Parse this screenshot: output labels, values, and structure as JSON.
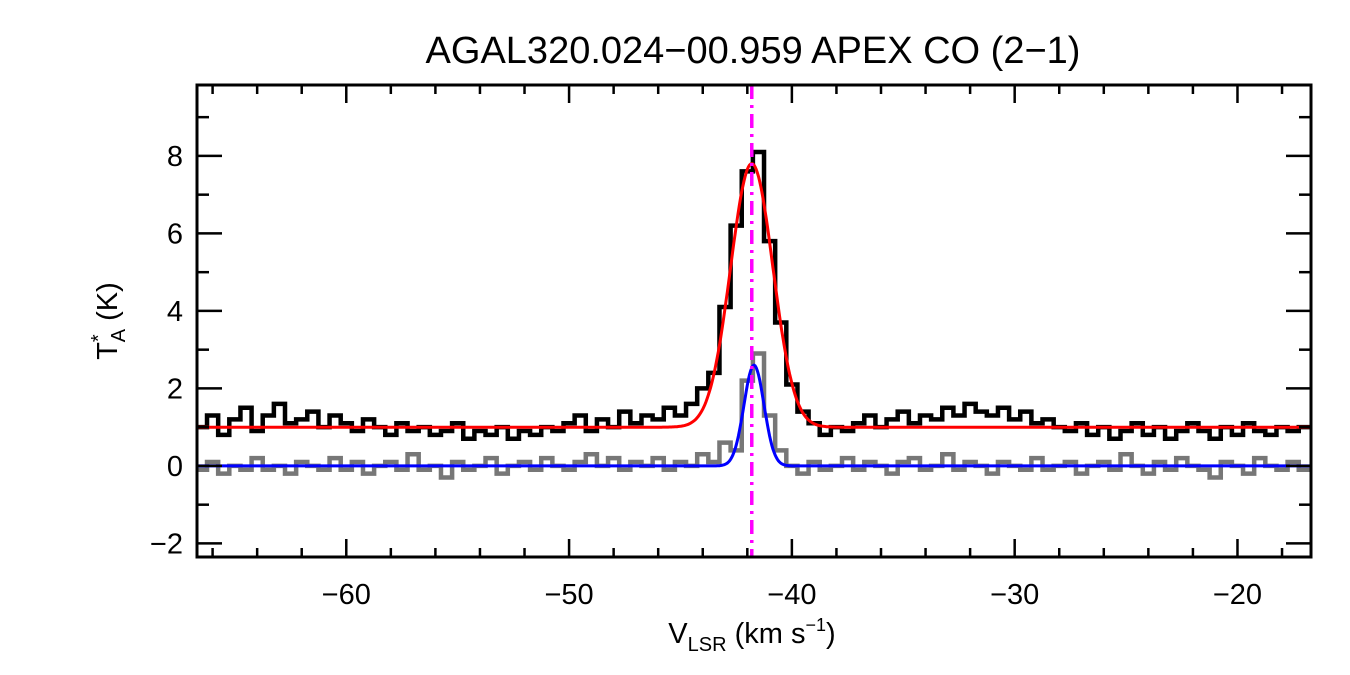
{
  "chart_data": {
    "type": "line",
    "title": "AGAL320.024−00.959  APEX CO (2−1)",
    "xlabel": {
      "main": "V",
      "sub": "LSR",
      "unit": " (km s",
      "sup": "−1",
      "close": ")"
    },
    "ylabel": {
      "main": "T",
      "sup": "*",
      "sub": "A",
      "unit": " (K)"
    },
    "xlim": [
      -66.7,
      -16.7
    ],
    "ylim": [
      -2.35,
      9.83
    ],
    "xticks": [
      -60,
      -50,
      -40,
      -30,
      -20
    ],
    "xtick_labels": [
      "−60",
      "−50",
      "−40",
      "−30",
      "−20"
    ],
    "yticks": [
      -2,
      0,
      2,
      4,
      6,
      8
    ],
    "ytick_labels": [
      "−2",
      "0",
      "2",
      "4",
      "6",
      "8"
    ],
    "x_minor_step": 2,
    "y_minor_step": 1,
    "channel_x_start": -66.5,
    "channel_width": 0.5,
    "series": [
      {
        "name": "spectrum",
        "style": "histogram",
        "color": "#000000",
        "values": [
          1.0,
          1.3,
          0.8,
          1.2,
          1.5,
          0.9,
          1.3,
          1.6,
          1.1,
          1.2,
          1.4,
          1.0,
          1.3,
          1.1,
          0.9,
          1.2,
          1.0,
          0.8,
          1.1,
          0.9,
          1.0,
          0.8,
          0.9,
          1.1,
          0.7,
          0.9,
          0.8,
          1.0,
          0.7,
          0.9,
          0.8,
          1.0,
          0.9,
          1.1,
          1.3,
          0.9,
          1.2,
          1.0,
          1.4,
          1.1,
          1.3,
          1.2,
          1.5,
          1.3,
          1.6,
          2.0,
          2.4,
          4.1,
          6.2,
          7.6,
          8.1,
          5.8,
          3.7,
          2.1,
          1.4,
          1.1,
          0.8,
          1.0,
          0.9,
          1.1,
          1.3,
          1.0,
          1.2,
          1.4,
          1.1,
          1.3,
          1.2,
          1.5,
          1.3,
          1.6,
          1.4,
          1.3,
          1.5,
          1.2,
          1.4,
          1.1,
          1.2,
          1.0,
          0.9,
          1.1,
          0.8,
          1.0,
          0.7,
          0.9,
          1.1,
          0.8,
          1.0,
          0.7,
          0.9,
          1.1,
          0.9,
          0.7,
          1.0,
          0.8,
          1.1,
          0.9,
          0.8,
          1.0,
          0.9,
          1.0
        ]
      },
      {
        "name": "spectrum-2",
        "style": "histogram",
        "color": "#777777",
        "values": [
          -0.1,
          0.1,
          -0.2,
          0.0,
          -0.1,
          0.2,
          -0.1,
          0.0,
          -0.2,
          0.1,
          0.0,
          -0.1,
          0.2,
          -0.1,
          0.1,
          -0.2,
          0.0,
          0.1,
          -0.1,
          0.3,
          -0.1,
          0.0,
          -0.3,
          0.1,
          -0.1,
          0.0,
          0.2,
          -0.2,
          0.0,
          0.1,
          -0.1,
          0.2,
          0.0,
          -0.1,
          0.1,
          0.3,
          0.0,
          0.2,
          -0.1,
          0.1,
          0.0,
          0.2,
          -0.1,
          0.1,
          0.0,
          0.3,
          0.1,
          0.6,
          0.4,
          2.2,
          2.9,
          1.3,
          0.4,
          0.0,
          -0.2,
          0.1,
          -0.1,
          0.0,
          0.2,
          -0.1,
          0.1,
          0.0,
          -0.2,
          0.1,
          0.2,
          -0.1,
          0.0,
          0.3,
          -0.1,
          0.1,
          0.0,
          -0.2,
          0.1,
          0.0,
          -0.1,
          0.2,
          -0.1,
          0.0,
          0.1,
          -0.2,
          0.0,
          0.1,
          -0.1,
          0.3,
          0.0,
          -0.2,
          0.1,
          -0.1,
          0.2,
          0.0,
          -0.1,
          -0.3,
          0.1,
          0.0,
          -0.2,
          0.2,
          0.0,
          -0.1,
          0.1,
          -0.1
        ]
      }
    ],
    "fits": [
      {
        "name": "gaussian-fit-red",
        "color": "#ff0000",
        "baseline": 1.0,
        "amplitude": 6.8,
        "center": -41.8,
        "sigma": 0.95
      },
      {
        "name": "gaussian-fit-blue",
        "color": "#0000ff",
        "baseline": 0.0,
        "amplitude": 2.6,
        "center": -41.7,
        "sigma": 0.45
      }
    ],
    "vline": {
      "x": -41.8,
      "color": "#ff00ff",
      "style": "dash-dot"
    }
  }
}
